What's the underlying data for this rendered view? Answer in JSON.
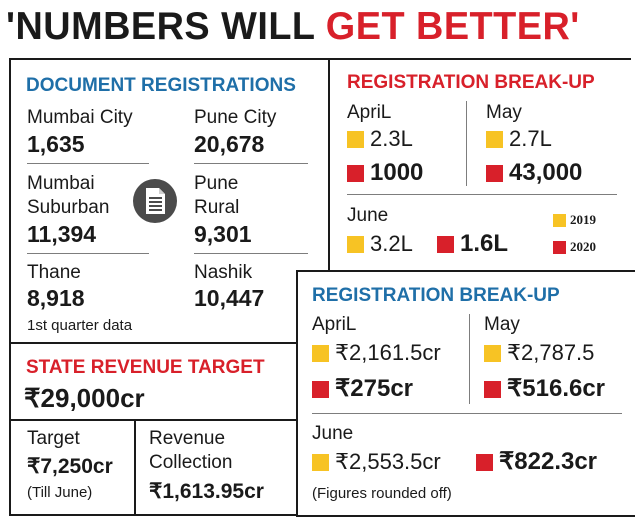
{
  "headline": {
    "part1": "'NUMBERS WILL ",
    "part2": "GET BETTER'"
  },
  "document_registrations": {
    "title": "DOCUMENT REGISTRATIONS",
    "items": [
      {
        "label": "Mumbai City",
        "value": "1,635"
      },
      {
        "label": "Pune City",
        "value": "20,678"
      },
      {
        "label": "Mumbai",
        "label2": "Suburban",
        "value": "11,394"
      },
      {
        "label": "Pune",
        "label2": "Rural",
        "value": "9,301"
      },
      {
        "label": "Thane",
        "value": "8,918"
      },
      {
        "label": "Nashik",
        "value": "10,447"
      }
    ],
    "note": "1st quarter data"
  },
  "state_revenue": {
    "title": "STATE REVENUE TARGET",
    "total": "₹29,000cr",
    "target_label": "Target",
    "target_value": "₹7,250cr",
    "target_note": "(Till June)",
    "collection_label1": "Revenue",
    "collection_label2": "Collection",
    "collection_value": "₹1,613.95cr"
  },
  "breakup_count": {
    "title": "REGISTRATION BREAK-UP",
    "april": {
      "label": "ApriL",
      "y2019": "2.3L",
      "y2020": "1000"
    },
    "may": {
      "label": "May",
      "y2019": "2.7L",
      "y2020": "43,000"
    },
    "june": {
      "label": "June",
      "y2019": "3.2L",
      "y2020": "1.6L"
    },
    "legend": {
      "y2019": "2019",
      "y2020": "2020"
    }
  },
  "breakup_value": {
    "title": "REGISTRATION BREAK-UP",
    "april": {
      "label": "ApriL",
      "y2019": "₹2,161.5cr",
      "y2020": "₹275cr"
    },
    "may": {
      "label": "May",
      "y2019": "₹2,787.5",
      "y2020": "₹516.6cr"
    },
    "june": {
      "label": "June",
      "y2019": "₹2,553.5cr",
      "y2020": "₹822.3cr"
    },
    "note": "(Figures rounded off)"
  },
  "colors": {
    "red": "#d8202a",
    "yellow": "#f7c324",
    "blue": "#1f6fa8"
  },
  "icons": {
    "document": "document-icon"
  }
}
